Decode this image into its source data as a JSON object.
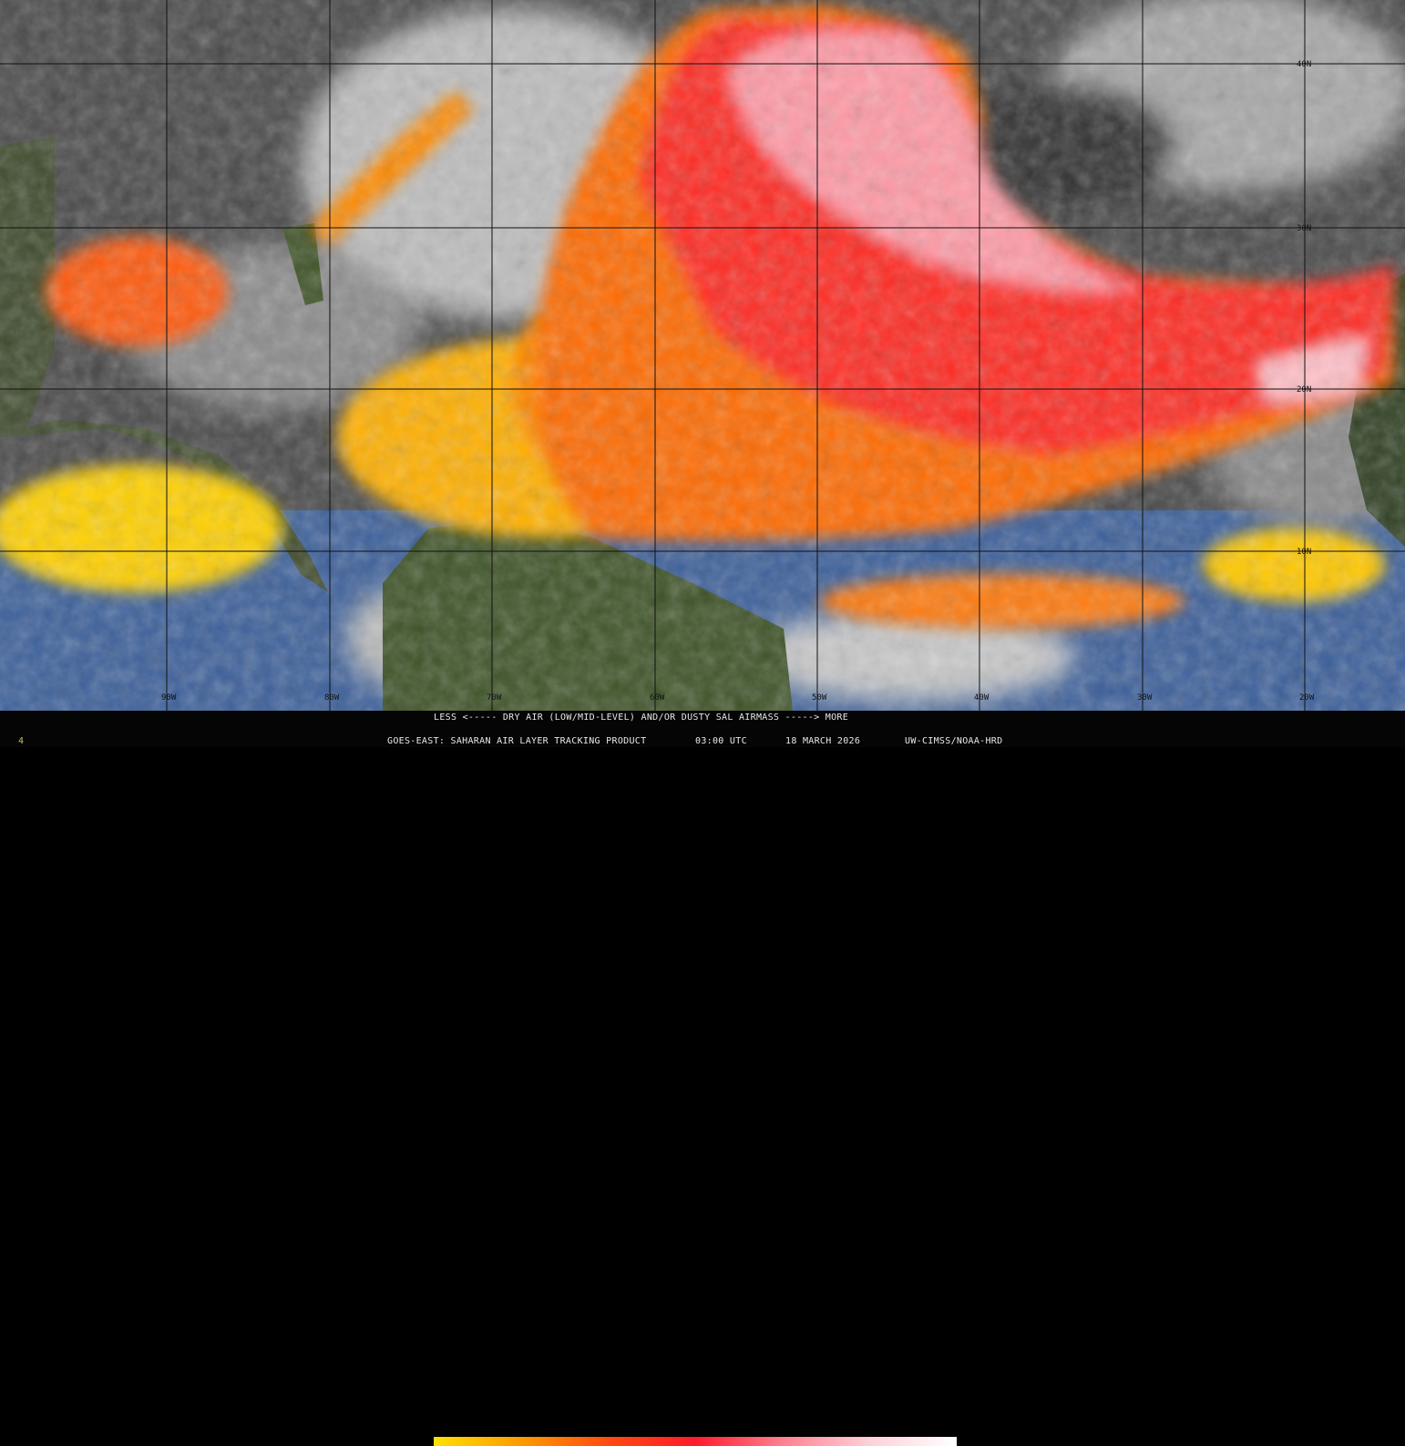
{
  "map": {
    "latitude_labels": [
      "40N",
      "30N",
      "20N",
      "10N"
    ],
    "longitude_labels": [
      "90W",
      "80W",
      "70W",
      "60W",
      "50W",
      "40W",
      "30W",
      "20W"
    ]
  },
  "legend": {
    "scale_title": "LESS <----- DRY AIR (LOW/MID-LEVEL) AND/OR DUSTY SAL AIRMASS -----> MORE",
    "colors": [
      "#ffe000",
      "#ff9a00",
      "#ff4a10",
      "#ff1a2a",
      "#ff8090",
      "#ffd0d8",
      "#ffffff"
    ],
    "product": "GOES-EAST: SAHARAN AIR LAYER TRACKING PRODUCT",
    "time": "03:00 UTC",
    "date": "18 MARCH 2026",
    "credit": "UW-CIMSS/NOAA-HRD",
    "corner_mark": "4"
  }
}
